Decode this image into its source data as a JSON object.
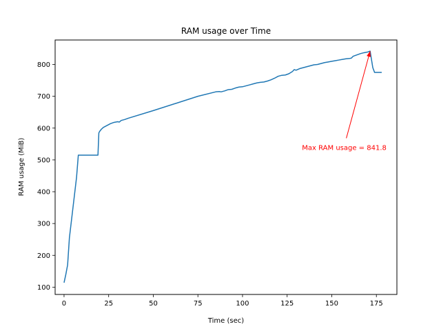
{
  "chart_data": {
    "type": "line",
    "title": "RAM usage over Time",
    "xlabel": "Time (sec)",
    "ylabel": "RAM usage (MiB)",
    "xlim": [
      -5,
      186.5
    ],
    "ylim": [
      77,
      877
    ],
    "xticks": [
      0,
      25,
      50,
      75,
      100,
      125,
      150,
      175
    ],
    "yticks": [
      100,
      200,
      300,
      400,
      500,
      600,
      700,
      800
    ],
    "grid": false,
    "series": [
      {
        "color": "#1f77b4",
        "x": [
          0,
          1,
          2,
          3,
          5,
          7,
          8,
          9,
          10,
          15,
          19,
          19.5,
          20,
          21,
          22,
          24,
          26,
          28,
          30,
          31,
          32,
          34,
          36,
          50,
          75,
          85,
          87,
          88,
          90,
          92,
          94,
          96,
          98,
          100,
          102,
          104,
          106,
          108,
          110,
          112,
          114,
          116,
          118,
          120,
          122,
          124,
          126,
          128,
          129,
          130,
          132,
          134,
          136,
          138,
          140,
          142,
          144,
          146,
          148,
          150,
          152,
          154,
          156,
          158,
          160,
          161,
          162,
          164,
          166,
          168,
          170,
          171.5,
          173,
          174,
          176,
          178
        ],
        "y": [
          114,
          140,
          170,
          255,
          350,
          445,
          515,
          515,
          515,
          515,
          515,
          585,
          590,
          597,
          602,
          608,
          614,
          618,
          620,
          619,
          624,
          627,
          631,
          655,
          700,
          714,
          715,
          714,
          717,
          721,
          722,
          726,
          729,
          730,
          733,
          736,
          739,
          742,
          744,
          745,
          748,
          752,
          757,
          763,
          766,
          767,
          771,
          778,
          784,
          782,
          787,
          790,
          793,
          796,
          799,
          800,
          803,
          806,
          808,
          810,
          812,
          814,
          816,
          818,
          819,
          820,
          826,
          830,
          834,
          837,
          839,
          842,
          790,
          775,
          775,
          775
        ]
      }
    ],
    "annotation": {
      "text": "Max RAM usage = 841.8",
      "color": "#ff0000",
      "xy": [
        171.5,
        841.8
      ],
      "xytext": [
        157,
        540
      ]
    }
  }
}
